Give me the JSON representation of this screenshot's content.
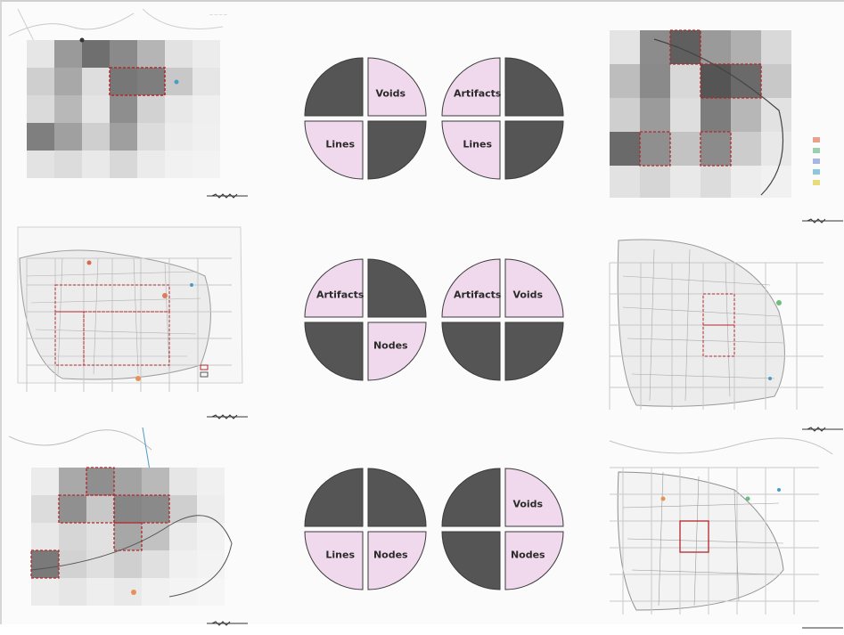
{
  "diagram": {
    "colors": {
      "filled_quadrant": "#f0d9ec",
      "empty_quadrant": "#555555",
      "grid_line": "#bdbdbd",
      "highlight": "#b3262b",
      "map_line": "#9a9a9a"
    },
    "quadrant_order": [
      "top-left",
      "top-right",
      "bottom-left",
      "bottom-right"
    ],
    "circles": [
      {
        "quadrants": [
          {
            "filled": false,
            "label": ""
          },
          {
            "filled": true,
            "label": "Voids"
          },
          {
            "filled": true,
            "label": "Lines"
          },
          {
            "filled": false,
            "label": ""
          }
        ]
      },
      {
        "quadrants": [
          {
            "filled": true,
            "label": "Artifacts"
          },
          {
            "filled": false,
            "label": ""
          },
          {
            "filled": true,
            "label": "Lines"
          },
          {
            "filled": false,
            "label": ""
          }
        ]
      },
      {
        "quadrants": [
          {
            "filled": true,
            "label": "Artifacts"
          },
          {
            "filled": false,
            "label": ""
          },
          {
            "filled": false,
            "label": ""
          },
          {
            "filled": true,
            "label": "Nodes"
          }
        ]
      },
      {
        "quadrants": [
          {
            "filled": true,
            "label": "Artifacts"
          },
          {
            "filled": true,
            "label": "Voids"
          },
          {
            "filled": false,
            "label": ""
          },
          {
            "filled": false,
            "label": ""
          }
        ]
      },
      {
        "quadrants": [
          {
            "filled": false,
            "label": ""
          },
          {
            "filled": false,
            "label": ""
          },
          {
            "filled": true,
            "label": "Lines"
          },
          {
            "filled": true,
            "label": "Nodes"
          }
        ]
      },
      {
        "quadrants": [
          {
            "filled": false,
            "label": ""
          },
          {
            "filled": true,
            "label": "Voids"
          },
          {
            "filled": false,
            "label": ""
          },
          {
            "filled": true,
            "label": "Nodes"
          }
        ]
      }
    ],
    "maps": [
      {
        "style": "shaded-grid"
      },
      {
        "style": "urban-grid"
      },
      {
        "style": "shaded-grid"
      },
      {
        "style": "urban-shaded-grid"
      },
      {
        "style": "urban-grid"
      },
      {
        "style": "line-grid"
      }
    ]
  }
}
